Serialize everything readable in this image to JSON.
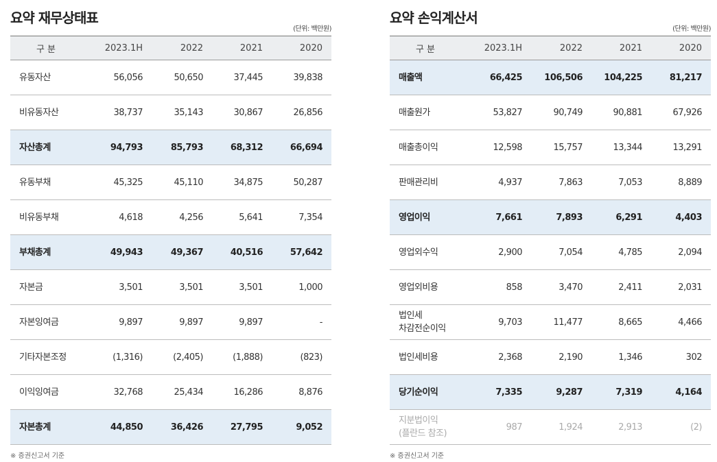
{
  "tables": [
    {
      "title": "요약 재무상태표",
      "unit": "(단위: 백만원)",
      "columns": [
        "구 분",
        "2023.1H",
        "2022",
        "2021",
        "2020"
      ],
      "rows": [
        {
          "label": [
            "유동자산"
          ],
          "values": [
            "56,056",
            "50,650",
            "37,445",
            "39,838"
          ]
        },
        {
          "label": [
            "비유동자산"
          ],
          "values": [
            "38,737",
            "35,143",
            "30,867",
            "26,856"
          ]
        },
        {
          "label": [
            "자산총계"
          ],
          "values": [
            "94,793",
            "85,793",
            "68,312",
            "66,694"
          ],
          "style": "highlight"
        },
        {
          "label": [
            "유동부채"
          ],
          "values": [
            "45,325",
            "45,110",
            "34,875",
            "50,287"
          ]
        },
        {
          "label": [
            "비유동부채"
          ],
          "values": [
            "4,618",
            "4,256",
            "5,641",
            "7,354"
          ]
        },
        {
          "label": [
            "부채총계"
          ],
          "values": [
            "49,943",
            "49,367",
            "40,516",
            "57,642"
          ],
          "style": "highlight"
        },
        {
          "label": [
            "자본금"
          ],
          "values": [
            "3,501",
            "3,501",
            "3,501",
            "1,000"
          ]
        },
        {
          "label": [
            "자본잉여금"
          ],
          "values": [
            "9,897",
            "9,897",
            "9,897",
            "-"
          ]
        },
        {
          "label": [
            "기타자본조정"
          ],
          "values": [
            "(1,316)",
            "(2,405)",
            "(1,888)",
            "(823)"
          ]
        },
        {
          "label": [
            "이익잉여금"
          ],
          "values": [
            "32,768",
            "25,434",
            "16,286",
            "8,876"
          ]
        },
        {
          "label": [
            "자본총계"
          ],
          "values": [
            "44,850",
            "36,426",
            "27,795",
            "9,052"
          ],
          "style": "highlight"
        }
      ],
      "note": "※ 증권신고서 기준"
    },
    {
      "title": "요약 손익계산서",
      "unit": "(단위: 백만원)",
      "columns": [
        "구 분",
        "2023.1H",
        "2022",
        "2021",
        "2020"
      ],
      "rows": [
        {
          "label": [
            "매출액"
          ],
          "values": [
            "66,425",
            "106,506",
            "104,225",
            "81,217"
          ],
          "style": "highlight"
        },
        {
          "label": [
            "매출원가"
          ],
          "values": [
            "53,827",
            "90,749",
            "90,881",
            "67,926"
          ]
        },
        {
          "label": [
            "매출총이익"
          ],
          "values": [
            "12,598",
            "15,757",
            "13,344",
            "13,291"
          ]
        },
        {
          "label": [
            "판매관리비"
          ],
          "values": [
            "4,937",
            "7,863",
            "7,053",
            "8,889"
          ]
        },
        {
          "label": [
            "영업이익"
          ],
          "values": [
            "7,661",
            "7,893",
            "6,291",
            "4,403"
          ],
          "style": "highlight"
        },
        {
          "label": [
            "영업외수익"
          ],
          "values": [
            "2,900",
            "7,054",
            "4,785",
            "2,094"
          ]
        },
        {
          "label": [
            "영업외비용"
          ],
          "values": [
            "858",
            "3,470",
            "2,411",
            "2,031"
          ]
        },
        {
          "label": [
            "법인세",
            "차감전순이익"
          ],
          "values": [
            "9,703",
            "11,477",
            "8,665",
            "4,466"
          ]
        },
        {
          "label": [
            "법인세비용"
          ],
          "values": [
            "2,368",
            "2,190",
            "1,346",
            "302"
          ]
        },
        {
          "label": [
            "당기순이익"
          ],
          "values": [
            "7,335",
            "9,287",
            "7,319",
            "4,164"
          ],
          "style": "highlight"
        },
        {
          "label": [
            "지분법이익",
            "(플란드 참조)"
          ],
          "values": [
            "987",
            "1,924",
            "2,913",
            "(2)"
          ],
          "style": "muted"
        }
      ],
      "note": "※ 증권신고서 기준"
    }
  ]
}
